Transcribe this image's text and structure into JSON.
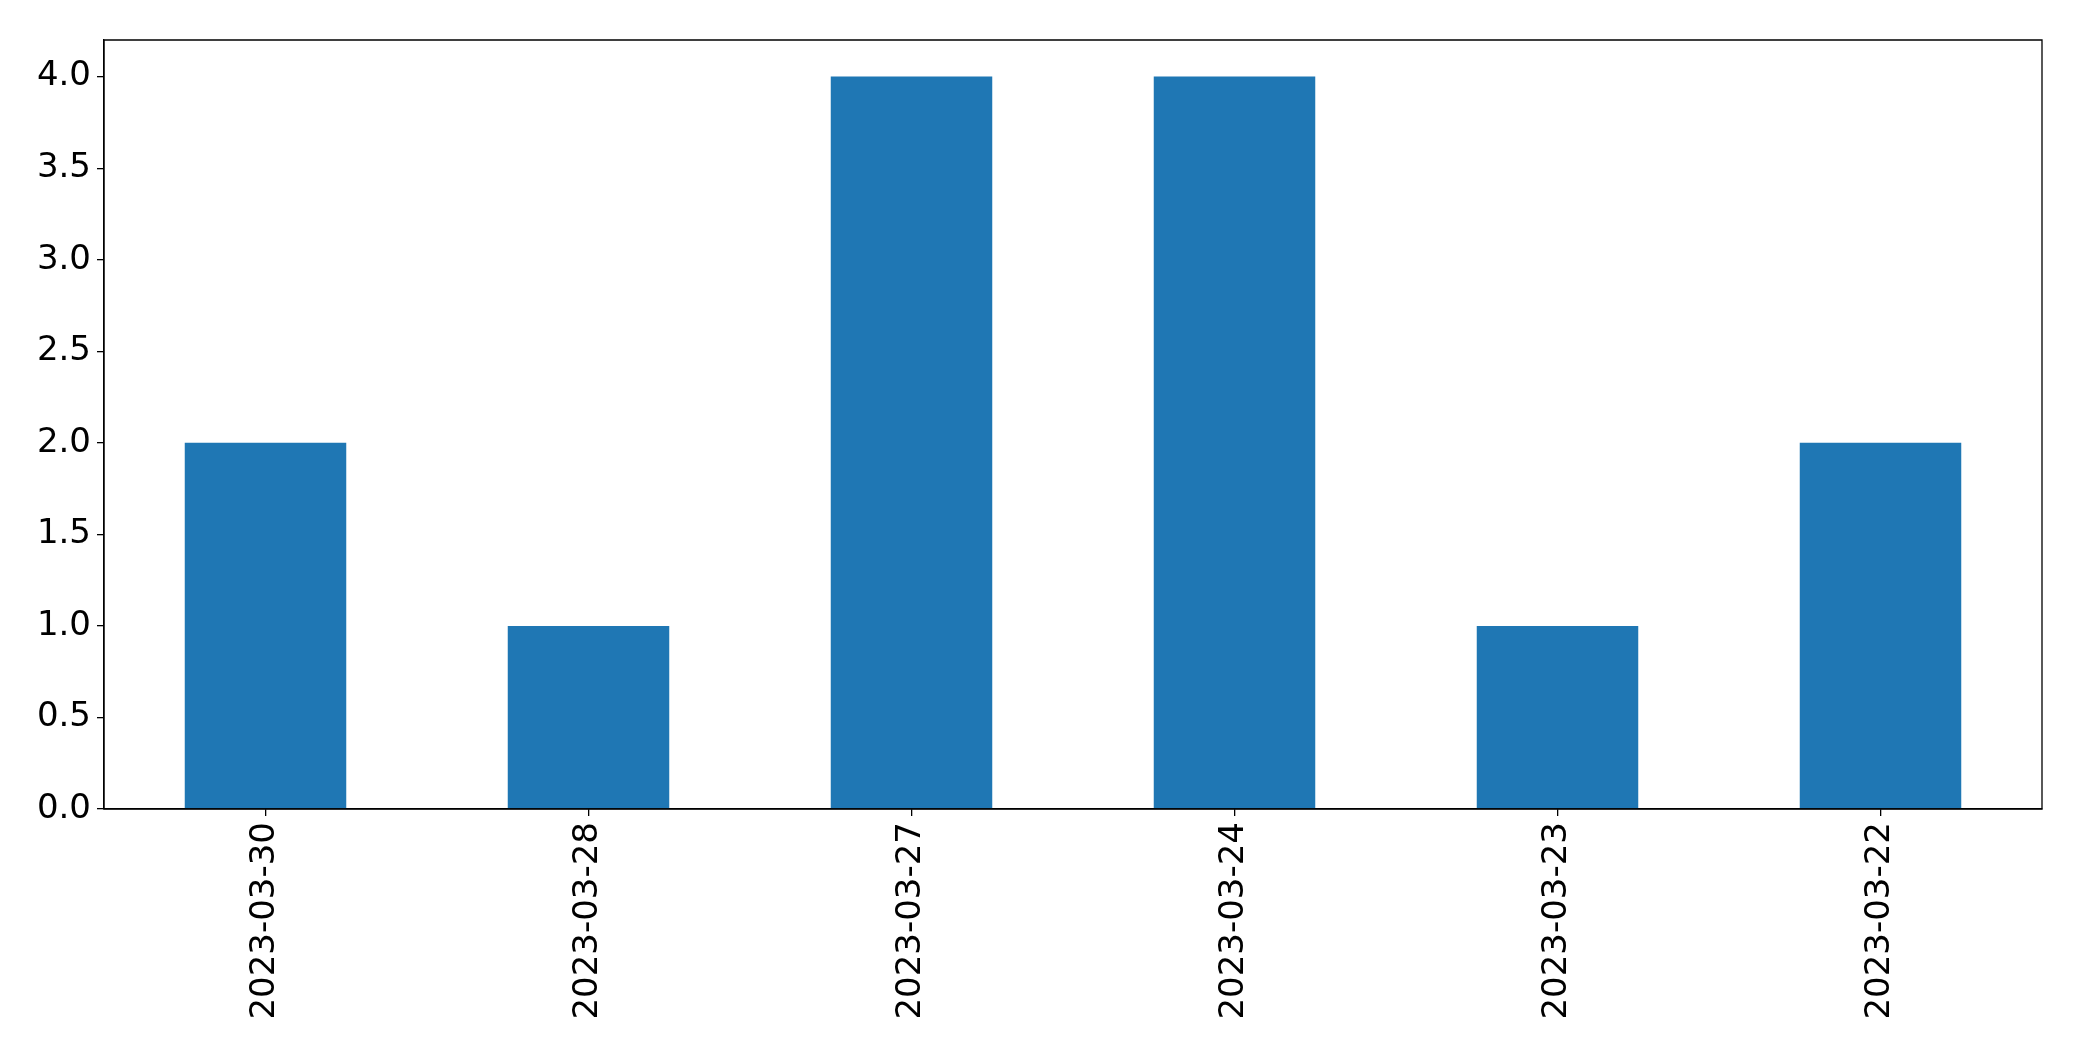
{
  "chart_data": {
    "type": "bar",
    "categories": [
      "2023-03-30",
      "2023-03-28",
      "2023-03-27",
      "2023-03-24",
      "2023-03-23",
      "2023-03-22"
    ],
    "values": [
      2,
      1,
      4,
      4,
      1,
      2
    ],
    "color": "#1f77b4",
    "ylim": [
      0,
      4.2
    ],
    "yticks": [
      {
        "value": 0,
        "label": "0.0"
      },
      {
        "value": 0.5,
        "label": "0.5"
      },
      {
        "value": 1,
        "label": "1.0"
      },
      {
        "value": 1.5,
        "label": "1.5"
      },
      {
        "value": 2,
        "label": "2.0"
      },
      {
        "value": 2.5,
        "label": "2.5"
      },
      {
        "value": 3,
        "label": "3.0"
      },
      {
        "value": 3.5,
        "label": "3.5"
      },
      {
        "value": 4,
        "label": "4.0"
      }
    ]
  }
}
